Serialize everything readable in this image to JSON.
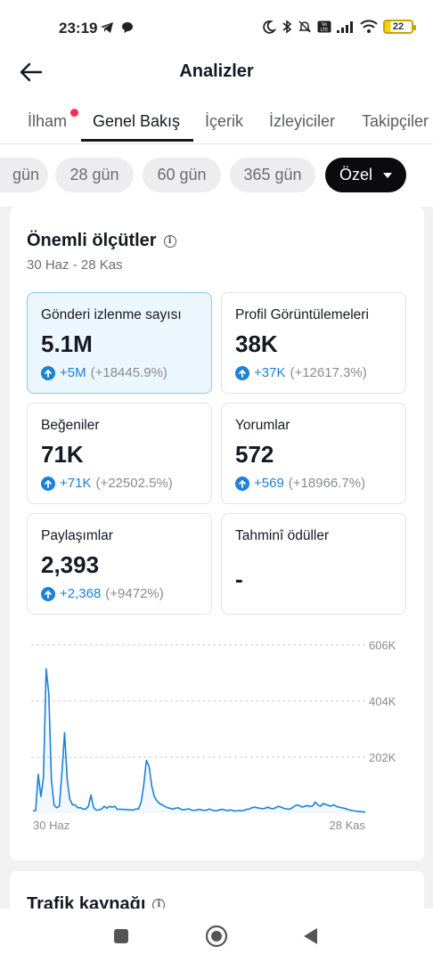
{
  "status": {
    "time": "23:19",
    "battery": "22",
    "icons": [
      "telegram-icon",
      "chat-bubble-icon",
      "moon-icon",
      "bluetooth-icon",
      "muted-bell-icon",
      "volte-icon",
      "signal-icon",
      "wifi-icon"
    ]
  },
  "header": {
    "title": "Analizler",
    "back_icon": "arrow-left-icon"
  },
  "tabs": [
    {
      "label": "İlham",
      "active": false,
      "has_dot": true
    },
    {
      "label": "Genel Bakış",
      "active": true
    },
    {
      "label": "İçerik",
      "active": false
    },
    {
      "label": "İzleyiciler",
      "active": false
    },
    {
      "label": "Takipçiler",
      "active": false
    }
  ],
  "date_chips": [
    {
      "label": "gün"
    },
    {
      "label": "28 gün"
    },
    {
      "label": "60 gün"
    },
    {
      "label": "365 gün"
    },
    {
      "label": "Özel",
      "active": true
    }
  ],
  "key_metrics": {
    "title": "Önemli ölçütler",
    "date_range": "30 Haz - 28 Kas",
    "cards": [
      {
        "label": "Gönderi izlenme sayısı",
        "value": "5.1M",
        "change": "+5M",
        "change_pct": "(+18445.9%)",
        "selected": true
      },
      {
        "label": "Profil Görüntülemeleri",
        "value": "38K",
        "change": "+37K",
        "change_pct": "(+12617.3%)"
      },
      {
        "label": "Beğeniler",
        "value": "71K",
        "change": "+71K",
        "change_pct": "(+22502.5%)"
      },
      {
        "label": "Yorumlar",
        "value": "572",
        "change": "+569",
        "change_pct": "(+18966.7%)"
      },
      {
        "label": "Paylaşımlar",
        "value": "2,393",
        "change": "+2,368",
        "change_pct": "(+9472%)"
      },
      {
        "label": "Tahminî ödüller",
        "value": "-",
        "change": "",
        "change_pct": ""
      }
    ]
  },
  "chart_data": {
    "type": "area",
    "x_tick_labels": [
      "30 Haz",
      "28 Kas"
    ],
    "y_tick_labels": [
      "606K",
      "404K",
      "202K"
    ],
    "y_ticks": [
      606000,
      404000,
      202000
    ],
    "ylim": [
      0,
      606000
    ],
    "grid": true,
    "color": "#1a82d8",
    "values": [
      8000,
      10000,
      140000,
      60000,
      130000,
      520000,
      430000,
      120000,
      30000,
      20000,
      25000,
      150000,
      290000,
      120000,
      50000,
      30000,
      30000,
      20000,
      20000,
      15000,
      15000,
      25000,
      65000,
      20000,
      12000,
      12000,
      15000,
      25000,
      18000,
      25000,
      22000,
      25000,
      14000,
      14000,
      14000,
      13000,
      13000,
      12000,
      12000,
      15000,
      15000,
      40000,
      100000,
      190000,
      170000,
      100000,
      60000,
      45000,
      35000,
      30000,
      25000,
      20000,
      18000,
      15000,
      18000,
      20000,
      15000,
      12000,
      14000,
      16000,
      12000,
      10000,
      12000,
      14000,
      12000,
      10000,
      12000,
      15000,
      11000,
      9000,
      10000,
      13000,
      14000,
      11000,
      10000,
      12000,
      9000,
      8000,
      10000,
      9000,
      11000,
      14000,
      15000,
      20000,
      22000,
      20000,
      18000,
      16000,
      18000,
      22000,
      18000,
      16000,
      20000,
      25000,
      22000,
      18000,
      16000,
      14000,
      18000,
      24000,
      30000,
      28000,
      22000,
      25000,
      28000,
      24000,
      26000,
      40000,
      30000,
      25000,
      35000,
      32000,
      28000,
      26000,
      30000,
      25000,
      22000,
      20000,
      18000,
      15000,
      12000,
      10000,
      8000,
      7000,
      6000,
      5000,
      4000
    ]
  },
  "traffic": {
    "title": "Trafik kaynağı"
  },
  "navbar": {
    "items": [
      "recents-button",
      "home-button",
      "back-button"
    ]
  }
}
